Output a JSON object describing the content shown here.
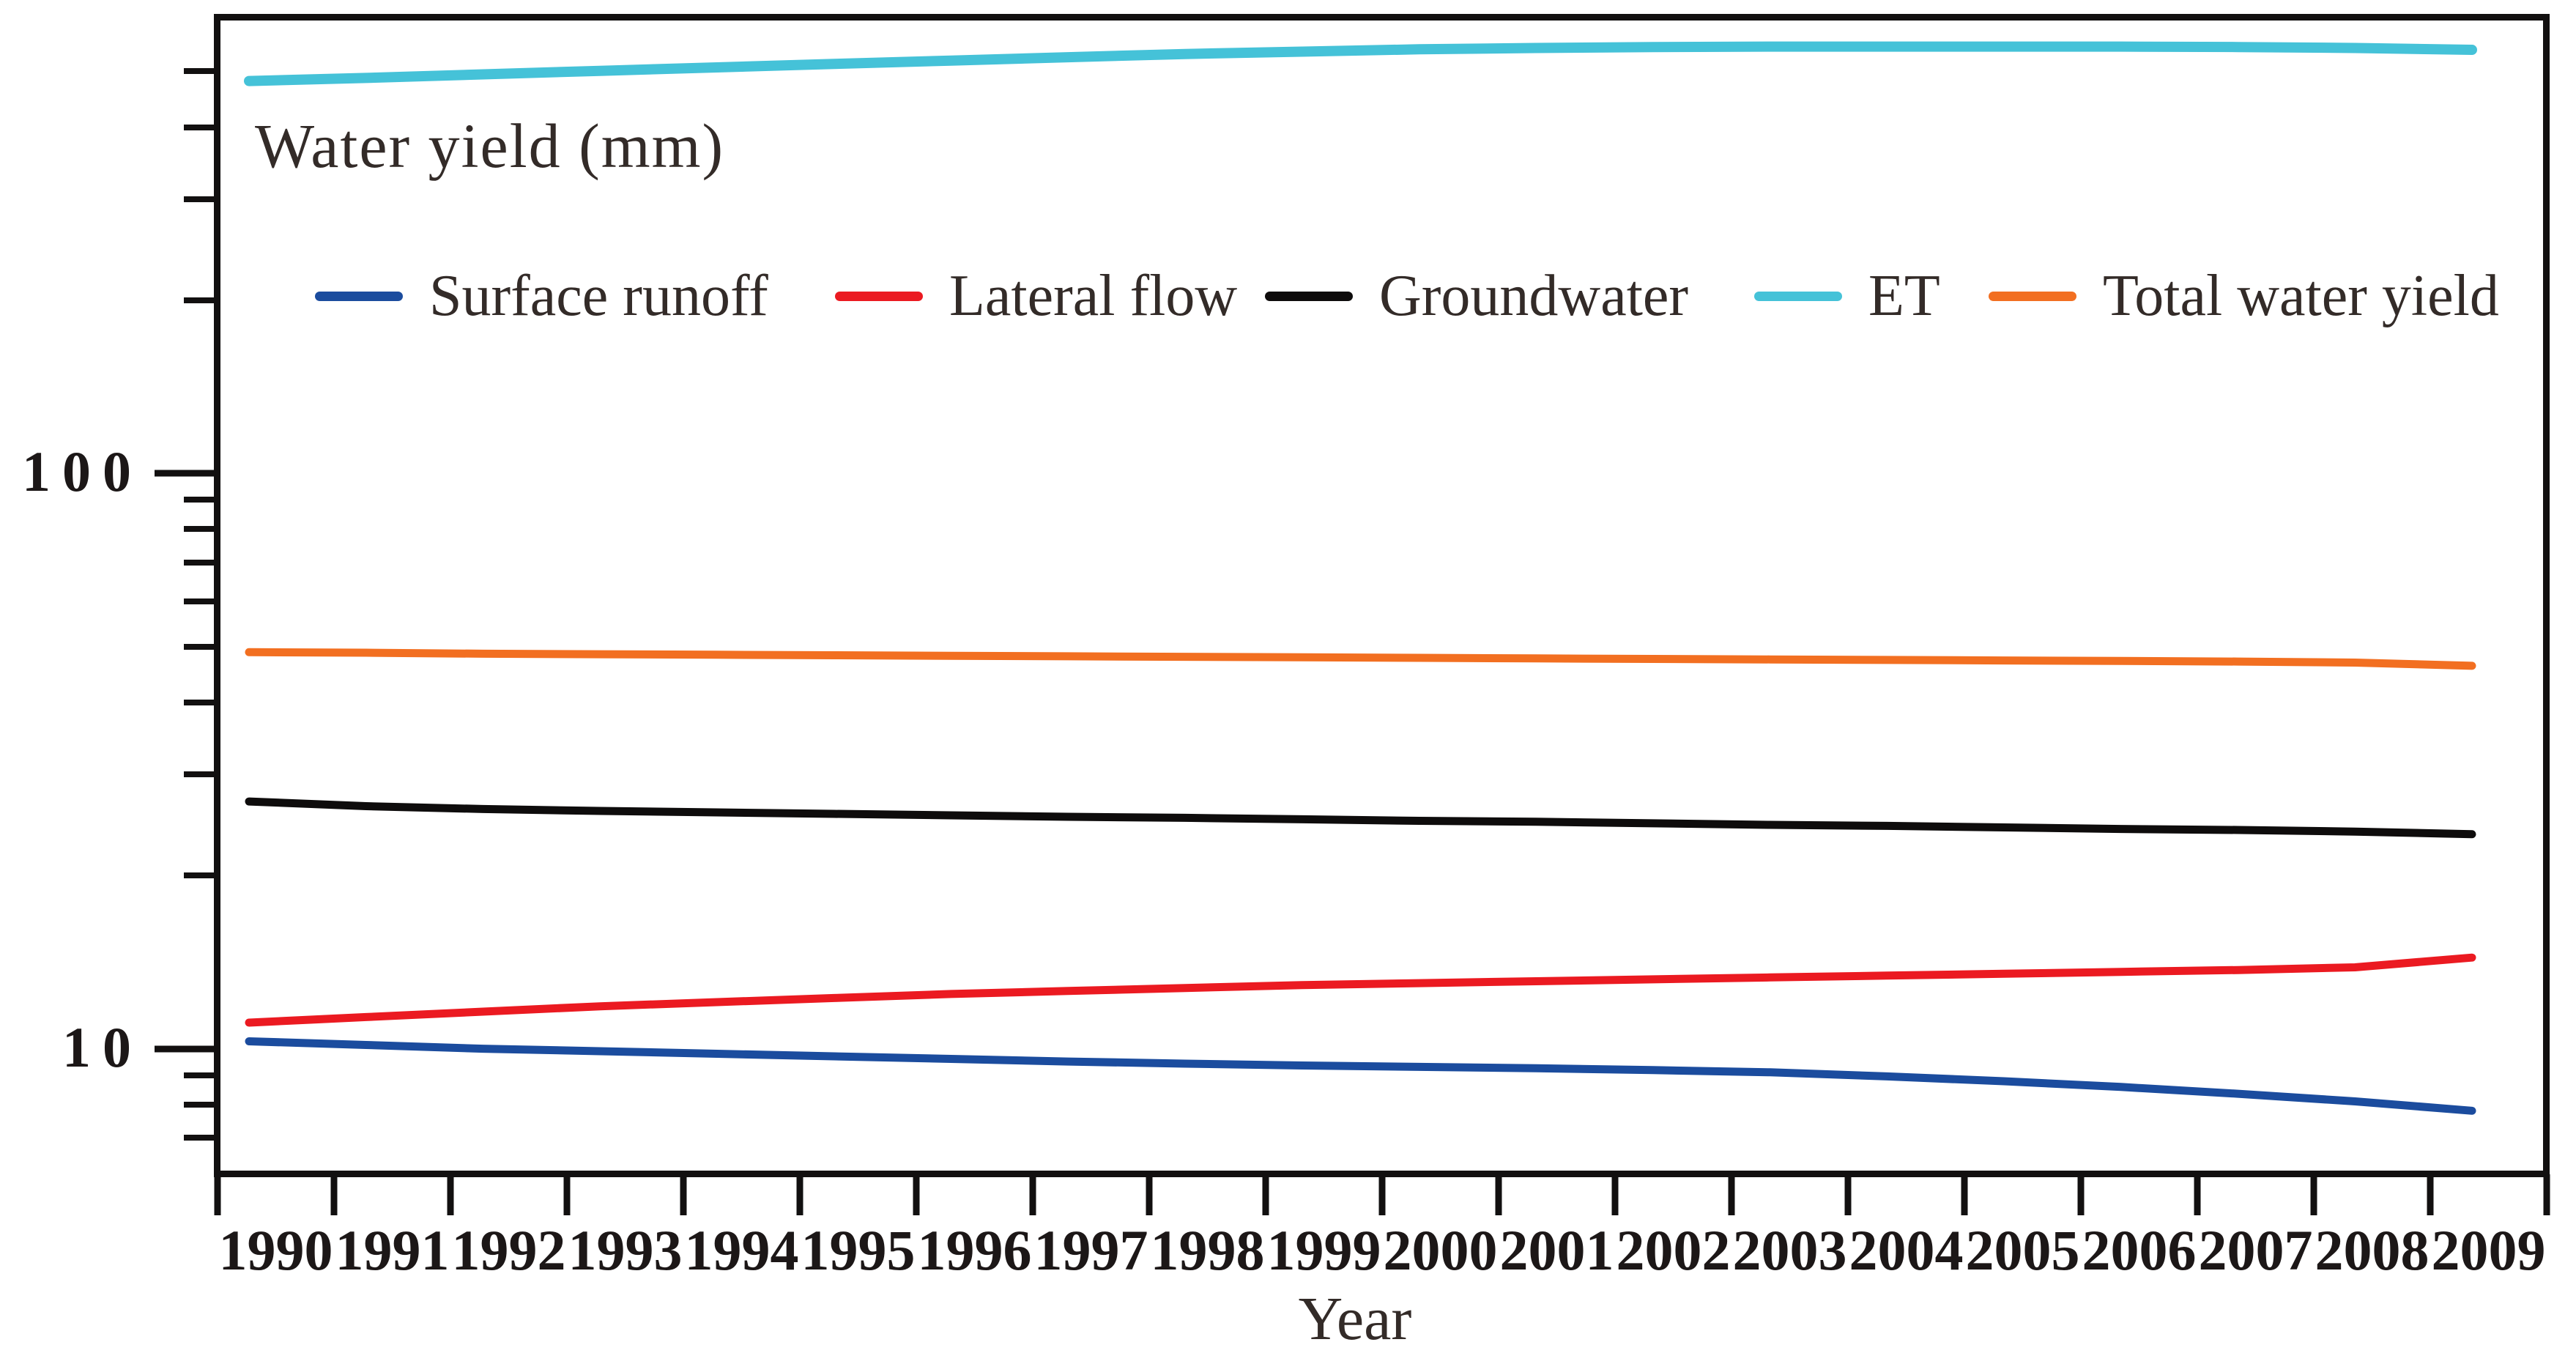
{
  "chart_data": {
    "type": "line",
    "title": "Water yield (mm)",
    "xlabel": "Year",
    "ylabel": "",
    "yscale": "log",
    "ylim": [
      6.05,
      620
    ],
    "grid": false,
    "legend_position": "top-inside",
    "y_major_ticks": [
      100,
      10
    ],
    "y_minor_ticks": [
      500,
      400,
      300,
      200,
      90,
      80,
      70,
      60,
      50,
      40,
      30,
      20,
      9,
      8,
      7
    ],
    "x": [
      1990,
      1991,
      1992,
      1993,
      1994,
      1995,
      1996,
      1997,
      1998,
      1999,
      2000,
      2001,
      2002,
      2003,
      2004,
      2005,
      2006,
      2007,
      2008,
      2009
    ],
    "series": [
      {
        "name": "Surface runoff",
        "color": "#1b4c9e",
        "values": [
          10.3,
          10.15,
          10.0,
          9.9,
          9.8,
          9.7,
          9.6,
          9.5,
          9.42,
          9.35,
          9.3,
          9.25,
          9.18,
          9.1,
          8.95,
          8.78,
          8.58,
          8.35,
          8.1,
          7.8
        ]
      },
      {
        "name": "Lateral flow",
        "color": "#eb1a21",
        "values": [
          11.1,
          11.35,
          11.6,
          11.85,
          12.05,
          12.25,
          12.45,
          12.6,
          12.75,
          12.9,
          13.0,
          13.1,
          13.2,
          13.3,
          13.4,
          13.5,
          13.6,
          13.7,
          13.85,
          14.4
        ]
      },
      {
        "name": "Groundwater",
        "color": "#0e0c0c",
        "values": [
          26.9,
          26.4,
          26.1,
          25.9,
          25.75,
          25.6,
          25.45,
          25.3,
          25.2,
          25.05,
          24.9,
          24.8,
          24.65,
          24.5,
          24.4,
          24.25,
          24.1,
          24.0,
          23.85,
          23.6
        ]
      },
      {
        "name": "ET",
        "color": "#45c2d8",
        "values": [
          481,
          487,
          494,
          501,
          508,
          515,
          522,
          529,
          536,
          541,
          546,
          549,
          551,
          552,
          552,
          552,
          552,
          551,
          549,
          545
        ]
      },
      {
        "name": "Total water yield",
        "color": "#f26f21",
        "values": [
          48.9,
          48.8,
          48.6,
          48.5,
          48.4,
          48.3,
          48.2,
          48.1,
          48.0,
          47.9,
          47.8,
          47.7,
          47.6,
          47.5,
          47.4,
          47.3,
          47.2,
          47.1,
          46.9,
          46.3
        ]
      }
    ]
  }
}
